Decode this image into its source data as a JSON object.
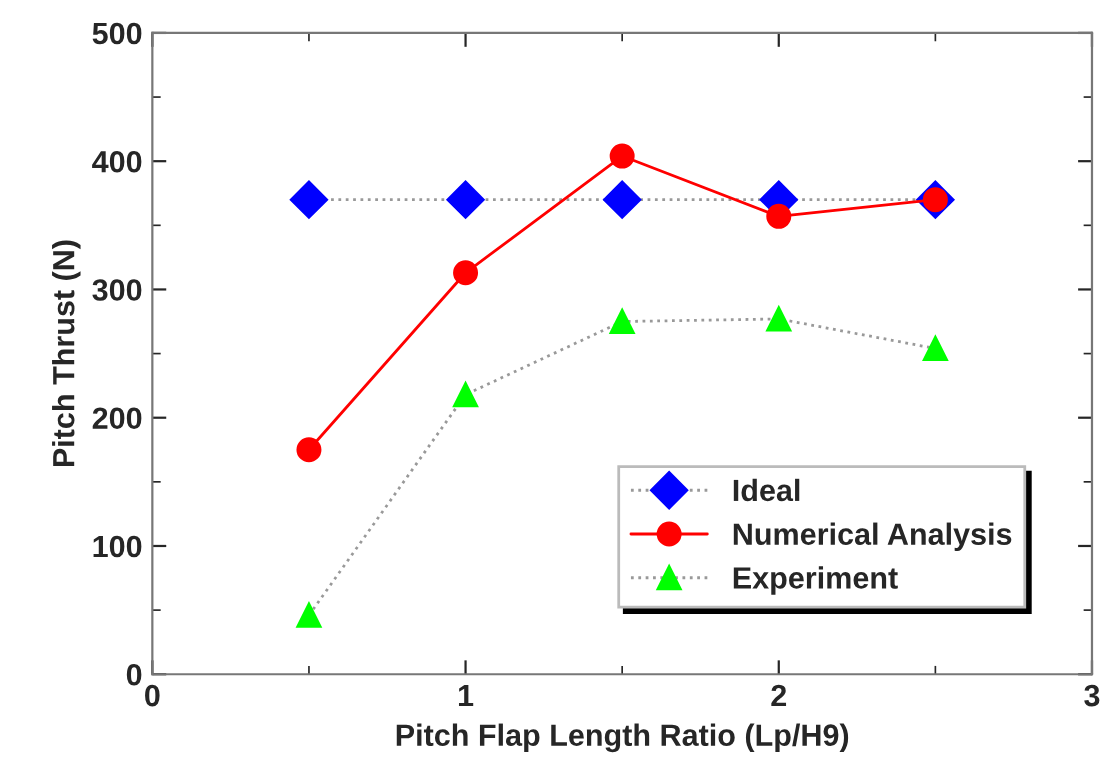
{
  "chart_data": {
    "type": "line",
    "xlabel": "Pitch Flap Length Ratio (Lp/H9)",
    "ylabel": "Pitch Thrust (N)",
    "x": [
      0.5,
      1,
      1.5,
      2,
      2.5
    ],
    "series": [
      {
        "name": "Ideal",
        "color": "#0000ff",
        "values": [
          370,
          370,
          370,
          370,
          370
        ],
        "marker": "diamond",
        "line_style": "dotted"
      },
      {
        "name": "Numerical Analysis",
        "color": "#ff0000",
        "values": [
          175,
          313,
          404,
          357,
          370
        ],
        "marker": "circle",
        "line_style": "solid"
      },
      {
        "name": "Experiment",
        "color": "#00ff00",
        "values": [
          46,
          218,
          275,
          277,
          254
        ],
        "marker": "triangle",
        "line_style": "dotted"
      }
    ],
    "xlim": [
      0,
      3
    ],
    "xticks": [
      0,
      1,
      2,
      3
    ],
    "ylim": [
      0,
      500
    ],
    "yticks": [
      0,
      100,
      200,
      300,
      400,
      500
    ],
    "grid": false,
    "legend": "bottom right"
  }
}
